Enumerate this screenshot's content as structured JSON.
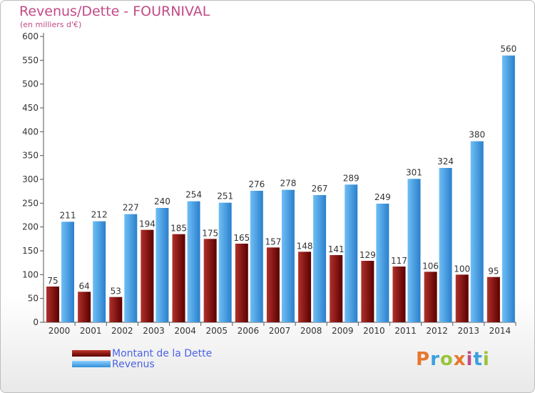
{
  "header": {
    "title": "Revenus/Dette - FOURNIVAL",
    "subtitle": "(en milliers d'€)"
  },
  "legend": {
    "dette_label": "Montant de la Dette",
    "revenus_label": "Revenus"
  },
  "logo": {
    "text": "Proxiti",
    "colors": [
      "#e8772e",
      "#3aa0e0",
      "#9bc43b",
      "#e8772e",
      "#c24a86",
      "#3aa0e0",
      "#9bc43b"
    ]
  },
  "colors": {
    "dette_top": "#c0392b",
    "dette_bottom": "#5a0000",
    "revenus_top": "#8fd0ff",
    "revenus_bottom": "#2f8fd9",
    "title": "#c24a86",
    "legend_text": "#4b63e6"
  },
  "chart_data": {
    "type": "bar",
    "categories": [
      "2000",
      "2001",
      "2002",
      "2003",
      "2004",
      "2005",
      "2006",
      "2007",
      "2008",
      "2009",
      "2010",
      "2011",
      "2012",
      "2013",
      "2014"
    ],
    "series": [
      {
        "name": "Montant de la Dette",
        "values": [
          75,
          64,
          53,
          194,
          185,
          175,
          165,
          157,
          148,
          141,
          129,
          117,
          106,
          100,
          95
        ]
      },
      {
        "name": "Revenus",
        "values": [
          211,
          212,
          227,
          240,
          254,
          251,
          276,
          278,
          267,
          289,
          249,
          301,
          324,
          380,
          560
        ]
      }
    ],
    "yticks": [
      0,
      50,
      100,
      150,
      200,
      250,
      300,
      350,
      400,
      450,
      500,
      550,
      600
    ],
    "ylim": [
      0,
      600
    ],
    "grid": false
  }
}
